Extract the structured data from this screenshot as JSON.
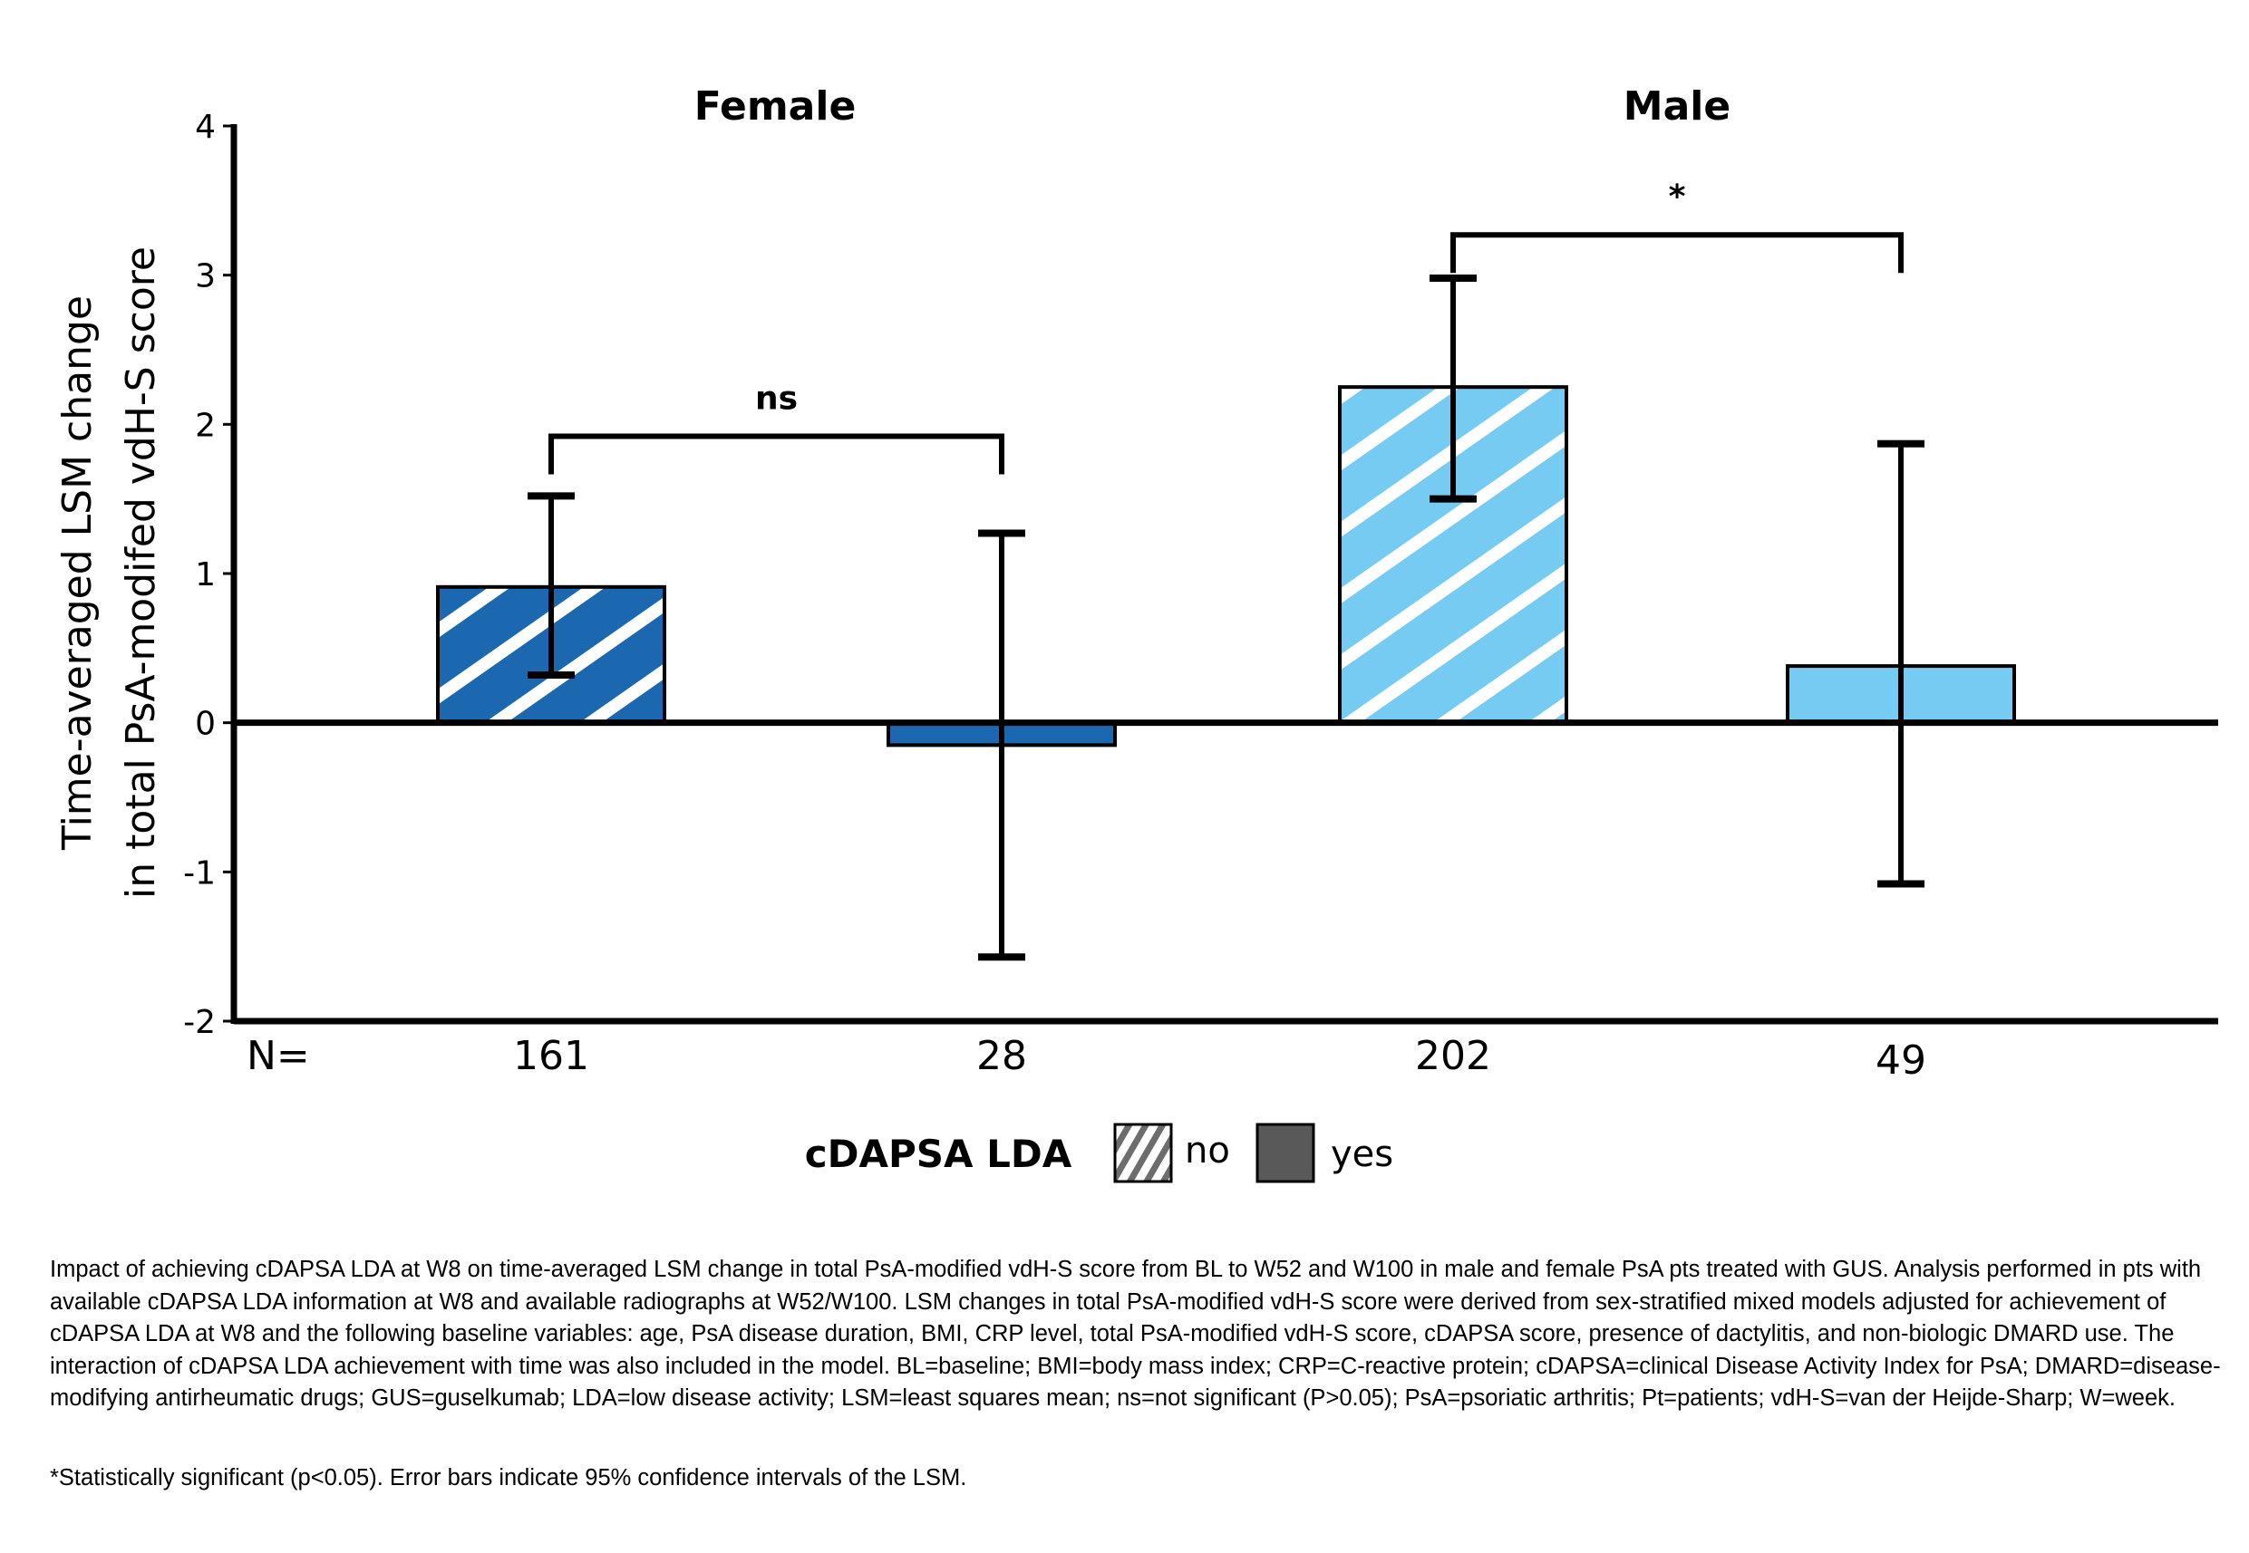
{
  "chart_data": {
    "type": "bar",
    "title": "",
    "panels": [
      "Female",
      "Male"
    ],
    "categories": [
      {
        "panel": "Female",
        "cdapsa_lda": "no",
        "n": "161"
      },
      {
        "panel": "Female",
        "cdapsa_lda": "yes",
        "n": "28"
      },
      {
        "panel": "Male",
        "cdapsa_lda": "no",
        "n": "202"
      },
      {
        "panel": "Male",
        "cdapsa_lda": "yes",
        "n": "49"
      }
    ],
    "values": [
      0.91,
      -0.15,
      2.25,
      0.38
    ],
    "error_bars": [
      {
        "lower": 0.32,
        "upper": 1.52
      },
      {
        "lower": -1.57,
        "upper": 1.27
      },
      {
        "lower": 1.5,
        "upper": 2.98
      },
      {
        "lower": -1.08,
        "upper": 1.87
      }
    ],
    "ylabel_line1": "Time-averaged LSM change",
    "ylabel_line2": "in total PsA-modifed vdH-S score",
    "xlabel": "",
    "ylim": [
      -2,
      4
    ],
    "yticks": [
      4,
      3,
      2,
      1,
      0,
      -1,
      -2
    ],
    "n_prefix": "N=",
    "grid": false,
    "significance": [
      {
        "panel": "Female",
        "label": "ns",
        "bracket_y": 1.92
      },
      {
        "panel": "Male",
        "label": "*",
        "bracket_y": 3.27
      }
    ],
    "legend": {
      "title": "cDAPSA LDA",
      "placement": "bottom-center",
      "entries": [
        {
          "label": "no",
          "pattern": "hatched"
        },
        {
          "label": "yes",
          "pattern": "solid"
        }
      ]
    },
    "colors": {
      "female": "#1b68b0",
      "male": "#75cbf2",
      "legend_solid": "#595959",
      "legend_hatch": "#6d6d6d",
      "axis": "#000000"
    }
  },
  "caption": {
    "main": "Impact of achieving cDAPSA LDA at W8 on time-averaged LSM change in total PsA-modified vdH-S score from BL to W52 and W100 in male and female PsA pts treated with GUS. Analysis performed in pts with available cDAPSA LDA information at W8 and available radiographs at W52/W100. LSM changes in total PsA-modified vdH-S score were derived from sex-stratified mixed models adjusted for achievement of cDAPSA LDA at W8 and the following baseline variables: age, PsA disease duration, BMI, CRP level, total PsA-modified vdH-S score, cDAPSA score, presence of dactylitis, and non-biologic DMARD use. The interaction of cDAPSA LDA achievement with time was also included in the model. BL=baseline; BMI=body mass index; CRP=C-reactive protein; cDAPSA=clinical Disease Activity Index for PsA; DMARD=disease-modifying antirheumatic drugs; GUS=guselkumab; LDA=low disease activity; LSM=least squares mean; ns=not significant (P>0.05); PsA=psoriatic arthritis; Pt=patients; vdH-S=van der Heijde-Sharp; W=week.",
    "note": "*Statistically significant (p<0.05). Error bars indicate 95% confidence intervals of the LSM."
  }
}
